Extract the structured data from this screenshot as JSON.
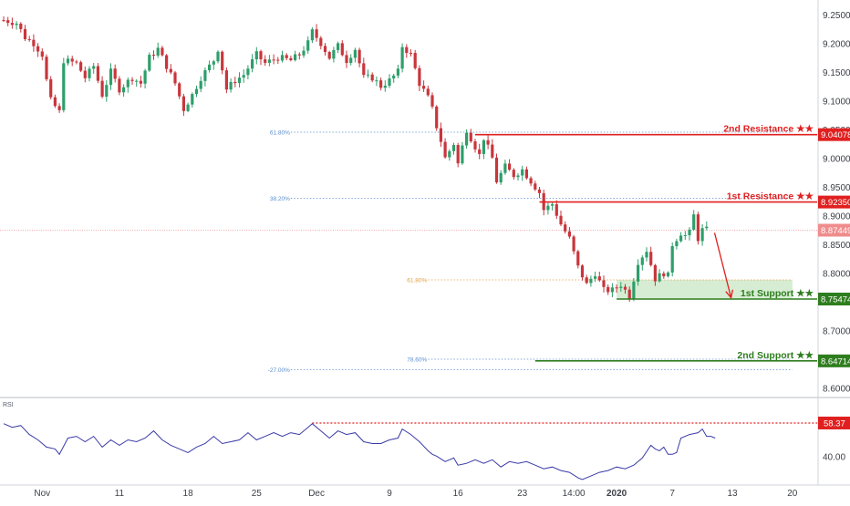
{
  "colors": {
    "up": "#2e9e6b",
    "down": "#c8363c",
    "resistance": "#e02020",
    "support": "#2e7d1e",
    "fib": "#5b8fcf",
    "fib_orange": "#e0a040",
    "rsi": "#3a3aa8",
    "price_tag": "#f08c8c",
    "zone": "#cce8c8"
  },
  "chart_data": [
    {
      "type": "candlestick",
      "yaxis": {
        "range": [
          8.585,
          9.275
        ],
        "ticks": [
          "9.25000",
          "9.20000",
          "9.15000",
          "9.10000",
          "9.05000",
          "9.00000",
          "8.95000",
          "8.90000",
          "8.85000",
          "8.80000",
          "8.75000",
          "8.70000",
          "8.65000",
          "8.60000"
        ],
        "tick_values": [
          9.25,
          9.2,
          9.15,
          9.1,
          9.05,
          9.0,
          8.95,
          8.9,
          8.85,
          8.8,
          8.75,
          8.7,
          8.65,
          8.6
        ]
      },
      "xaxis": {
        "labels": [
          {
            "label": "Nov",
            "bar": 9
          },
          {
            "label": "11",
            "bar": 27
          },
          {
            "label": "18",
            "bar": 43
          },
          {
            "label": "25",
            "bar": 59
          },
          {
            "label": "Dec",
            "bar": 73
          },
          {
            "label": "9",
            "bar": 90
          },
          {
            "label": "16",
            "bar": 106
          },
          {
            "label": "23",
            "bar": 121
          },
          {
            "label": "14:00",
            "bar": 133
          },
          {
            "label": "2020",
            "bar": 143
          },
          {
            "label": "7",
            "bar": 156
          },
          {
            "label": "13",
            "bar": 170
          },
          {
            "label": "20",
            "bar": 184
          }
        ]
      },
      "price_points": [
        [
          0,
          9.24
        ],
        [
          3,
          9.235
        ],
        [
          5,
          9.21
        ],
        [
          7,
          9.2
        ],
        [
          9,
          9.18
        ],
        [
          10,
          9.135
        ],
        [
          11,
          9.1
        ],
        [
          13,
          9.08
        ],
        [
          14,
          9.17
        ],
        [
          17,
          9.165
        ],
        [
          19,
          9.14
        ],
        [
          21,
          9.16
        ],
        [
          23,
          9.11
        ],
        [
          25,
          9.15
        ],
        [
          27,
          9.12
        ],
        [
          30,
          9.14
        ],
        [
          32,
          9.13
        ],
        [
          34,
          9.175
        ],
        [
          36,
          9.19
        ],
        [
          38,
          9.16
        ],
        [
          40,
          9.13
        ],
        [
          42,
          9.085
        ],
        [
          44,
          9.11
        ],
        [
          46,
          9.14
        ],
        [
          49,
          9.17
        ],
        [
          50,
          9.19
        ],
        [
          52,
          9.12
        ],
        [
          54,
          9.135
        ],
        [
          56,
          9.145
        ],
        [
          59,
          9.18
        ],
        [
          61,
          9.165
        ],
        [
          64,
          9.175
        ],
        [
          67,
          9.17
        ],
        [
          69,
          9.18
        ],
        [
          71,
          9.2
        ],
        [
          72,
          9.22
        ],
        [
          74,
          9.2
        ],
        [
          76,
          9.175
        ],
        [
          78,
          9.195
        ],
        [
          80,
          9.17
        ],
        [
          82,
          9.19
        ],
        [
          84,
          9.14
        ],
        [
          86,
          9.14
        ],
        [
          88,
          9.125
        ],
        [
          90,
          9.135
        ],
        [
          92,
          9.15
        ],
        [
          93,
          9.195
        ],
        [
          95,
          9.18
        ],
        [
          97,
          9.13
        ],
        [
          99,
          9.105
        ],
        [
          100,
          9.085
        ],
        [
          101,
          9.055
        ],
        [
          102,
          9.03
        ],
        [
          103,
          9.0
        ],
        [
          105,
          9.025
        ],
        [
          106,
          8.99
        ],
        [
          108,
          9.05
        ],
        [
          110,
          9.02
        ],
        [
          111,
          9.005
        ],
        [
          112,
          9.035
        ],
        [
          114,
          9.0
        ],
        [
          115,
          8.96
        ],
        [
          117,
          8.985
        ],
        [
          119,
          8.97
        ],
        [
          121,
          8.98
        ],
        [
          123,
          8.96
        ],
        [
          125,
          8.94
        ],
        [
          126,
          8.91
        ],
        [
          128,
          8.92
        ],
        [
          130,
          8.885
        ],
        [
          132,
          8.86
        ],
        [
          134,
          8.81
        ],
        [
          136,
          8.78
        ],
        [
          138,
          8.8
        ],
        [
          140,
          8.77
        ],
        [
          142,
          8.77
        ],
        [
          144,
          8.78
        ],
        [
          146,
          8.76
        ],
        [
          148,
          8.82
        ],
        [
          150,
          8.84
        ],
        [
          152,
          8.79
        ],
        [
          154,
          8.8
        ],
        [
          155,
          8.795
        ],
        [
          156,
          8.85
        ],
        [
          158,
          8.87
        ],
        [
          159,
          8.865
        ],
        [
          160,
          8.87
        ],
        [
          161,
          8.9
        ],
        [
          162,
          8.86
        ],
        [
          163,
          8.875
        ],
        [
          164,
          8.875
        ]
      ],
      "levels": [
        {
          "label": "2nd Resistance ★★",
          "value": 9.04078,
          "tag": "9.04078",
          "start_bar": 110,
          "role": "resistance"
        },
        {
          "label": "1st Resistance ★★",
          "value": 8.9235,
          "tag": "8.92350",
          "start_bar": 125,
          "role": "resistance"
        },
        {
          "label": "1st Support ★★",
          "value": 8.75474,
          "tag": "8.75474",
          "start_bar": 143,
          "role": "support"
        },
        {
          "label": "2nd Support ★★",
          "value": 8.64714,
          "tag": "8.64714",
          "start_bar": 124,
          "role": "support"
        }
      ],
      "current_price": {
        "value": 8.87449,
        "tag": "8.87449"
      },
      "fib_levels": [
        {
          "label": "61.80%",
          "value": 9.045,
          "start_bar": 67,
          "end_bar": 184,
          "color": "fib"
        },
        {
          "label": "38.20%",
          "value": 8.93,
          "start_bar": 67,
          "end_bar": 184,
          "color": "fib"
        },
        {
          "label": "61.80%",
          "value": 8.788,
          "start_bar": 99,
          "end_bar": 184,
          "color": "fib_orange"
        },
        {
          "label": "78.60%",
          "value": 8.65,
          "start_bar": 99,
          "end_bar": 184,
          "color": "fib"
        },
        {
          "label": "-27.00%",
          "value": 8.632,
          "start_bar": 67,
          "end_bar": 184,
          "color": "fib"
        }
      ],
      "support_zone": {
        "from_bar": 143,
        "to_bar": 184,
        "top": 8.788,
        "bottom": 8.75474
      },
      "projection_arrow": {
        "from_bar": 165,
        "from_value": 8.87,
        "to_bar": 168,
        "to_value": 8.757
      }
    },
    {
      "type": "line",
      "series": [
        {
          "name": "RSI"
        }
      ],
      "yaxis": {
        "range": [
          25,
          72
        ],
        "ticks": [
          "40.00"
        ],
        "tick_values": [
          40
        ]
      },
      "resistance_level": {
        "value": 58.37,
        "tag": "58.37",
        "start_bar": 72
      },
      "points": [
        [
          0,
          58
        ],
        [
          2,
          56
        ],
        [
          4,
          57
        ],
        [
          6,
          52
        ],
        [
          8,
          49
        ],
        [
          10,
          45
        ],
        [
          12,
          44
        ],
        [
          13,
          41
        ],
        [
          15,
          50
        ],
        [
          17,
          51
        ],
        [
          19,
          48
        ],
        [
          21,
          51
        ],
        [
          23,
          45
        ],
        [
          25,
          49
        ],
        [
          27,
          46
        ],
        [
          29,
          49
        ],
        [
          31,
          48
        ],
        [
          33,
          50
        ],
        [
          35,
          54
        ],
        [
          37,
          49
        ],
        [
          39,
          46
        ],
        [
          41,
          44
        ],
        [
          43,
          42
        ],
        [
          45,
          45
        ],
        [
          47,
          47
        ],
        [
          49,
          51
        ],
        [
          51,
          47
        ],
        [
          53,
          48
        ],
        [
          55,
          49
        ],
        [
          57,
          53
        ],
        [
          59,
          49
        ],
        [
          61,
          51
        ],
        [
          63,
          53
        ],
        [
          65,
          51
        ],
        [
          67,
          53
        ],
        [
          69,
          52
        ],
        [
          71,
          56
        ],
        [
          72,
          58
        ],
        [
          74,
          54
        ],
        [
          76,
          50
        ],
        [
          78,
          54
        ],
        [
          80,
          52
        ],
        [
          82,
          53
        ],
        [
          84,
          48
        ],
        [
          86,
          47
        ],
        [
          88,
          47
        ],
        [
          90,
          49
        ],
        [
          92,
          50
        ],
        [
          93,
          55
        ],
        [
          95,
          52
        ],
        [
          97,
          48
        ],
        [
          99,
          43
        ],
        [
          100,
          41
        ],
        [
          101,
          40
        ],
        [
          103,
          37
        ],
        [
          105,
          39
        ],
        [
          106,
          35
        ],
        [
          108,
          36
        ],
        [
          110,
          38
        ],
        [
          112,
          36
        ],
        [
          114,
          38
        ],
        [
          116,
          34
        ],
        [
          118,
          37
        ],
        [
          120,
          36
        ],
        [
          122,
          37
        ],
        [
          124,
          35
        ],
        [
          126,
          33
        ],
        [
          128,
          34
        ],
        [
          130,
          32
        ],
        [
          132,
          31
        ],
        [
          134,
          28
        ],
        [
          135,
          27
        ],
        [
          137,
          29
        ],
        [
          139,
          31
        ],
        [
          141,
          32
        ],
        [
          143,
          34
        ],
        [
          145,
          33
        ],
        [
          147,
          35
        ],
        [
          149,
          39
        ],
        [
          151,
          46
        ],
        [
          152,
          44
        ],
        [
          153,
          43
        ],
        [
          154,
          45
        ],
        [
          155,
          41
        ],
        [
          156,
          41
        ],
        [
          157,
          42
        ],
        [
          158,
          50
        ],
        [
          160,
          52
        ],
        [
          162,
          53
        ],
        [
          163,
          55
        ],
        [
          164,
          51
        ],
        [
          165,
          51
        ],
        [
          166,
          50
        ]
      ]
    }
  ]
}
